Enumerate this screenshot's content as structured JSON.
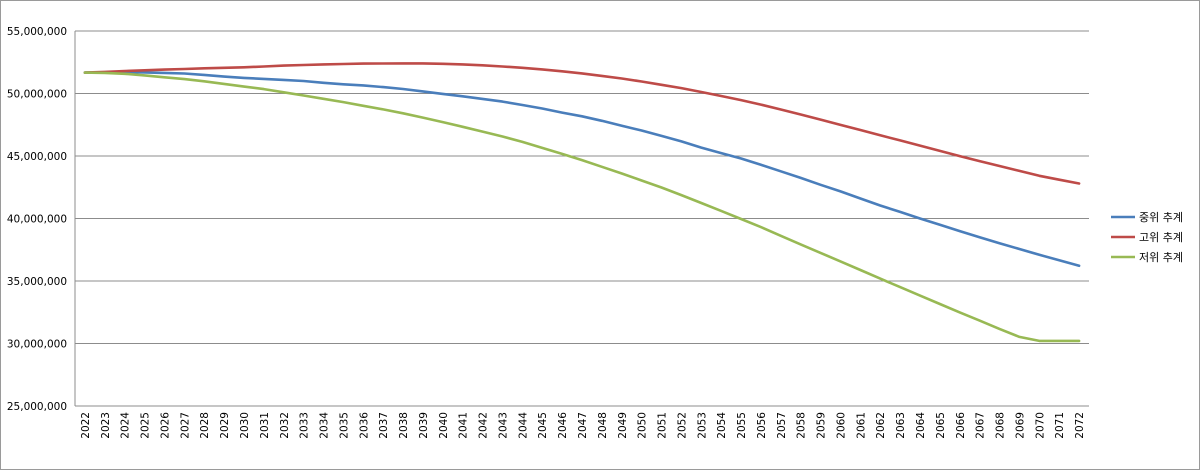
{
  "chart_data": {
    "type": "line",
    "title": "",
    "xlabel": "",
    "ylabel": "",
    "ylim": [
      25000000,
      55000000
    ],
    "yticks": [
      25000000,
      30000000,
      35000000,
      40000000,
      45000000,
      50000000,
      55000000
    ],
    "ytick_labels": [
      "25,000,000",
      "30,000,000",
      "35,000,000",
      "40,000,000",
      "45,000,000",
      "50,000,000",
      "55,000,000"
    ],
    "grid": "horizontal",
    "legend_position": "right",
    "x": [
      2022,
      2023,
      2024,
      2025,
      2026,
      2027,
      2028,
      2029,
      2030,
      2031,
      2032,
      2033,
      2034,
      2035,
      2036,
      2037,
      2038,
      2039,
      2040,
      2041,
      2042,
      2043,
      2044,
      2045,
      2046,
      2047,
      2048,
      2049,
      2050,
      2051,
      2052,
      2053,
      2054,
      2055,
      2056,
      2057,
      2058,
      2059,
      2060,
      2061,
      2062,
      2063,
      2064,
      2065,
      2066,
      2067,
      2068,
      2069,
      2070,
      2071,
      2072
    ],
    "series": [
      {
        "name": "중위 추계",
        "color": "#4a7ebb",
        "values": [
          51670000,
          51690000,
          51710000,
          51690000,
          51650000,
          51600000,
          51490000,
          51350000,
          51250000,
          51170000,
          51090000,
          51000000,
          50860000,
          50740000,
          50650000,
          50510000,
          50360000,
          50170000,
          49970000,
          49780000,
          49570000,
          49350000,
          49080000,
          48800000,
          48470000,
          48180000,
          47820000,
          47420000,
          47040000,
          46610000,
          46170000,
          45670000,
          45230000,
          44800000,
          44300000,
          43780000,
          43250000,
          42700000,
          42170000,
          41600000,
          41040000,
          40530000,
          40000000,
          39500000,
          38990000,
          38500000,
          38020000,
          37560000,
          37100000,
          36660000,
          36220000
        ]
      },
      {
        "name": "고위 추계",
        "color": "#be4b48",
        "values": [
          51670000,
          51730000,
          51800000,
          51860000,
          51910000,
          51960000,
          52020000,
          52060000,
          52100000,
          52160000,
          52230000,
          52280000,
          52330000,
          52360000,
          52390000,
          52400000,
          52410000,
          52410000,
          52380000,
          52330000,
          52260000,
          52160000,
          52060000,
          51930000,
          51780000,
          51610000,
          51410000,
          51200000,
          50960000,
          50700000,
          50430000,
          50120000,
          49800000,
          49470000,
          49110000,
          48720000,
          48320000,
          47910000,
          47490000,
          47080000,
          46660000,
          46250000,
          45830000,
          45410000,
          44990000,
          44590000,
          44200000,
          43810000,
          43420000,
          43100000,
          42800000
        ]
      },
      {
        "name": "저위 추계",
        "color": "#98b954",
        "values": [
          51670000,
          51650000,
          51580000,
          51450000,
          51300000,
          51150000,
          50980000,
          50770000,
          50550000,
          50350000,
          50100000,
          49840000,
          49580000,
          49310000,
          49020000,
          48730000,
          48420000,
          48070000,
          47710000,
          47340000,
          46950000,
          46560000,
          46130000,
          45650000,
          45170000,
          44670000,
          44140000,
          43600000,
          43040000,
          42480000,
          41870000,
          41240000,
          40610000,
          39960000,
          39310000,
          38620000,
          37930000,
          37250000,
          36570000,
          35880000,
          35190000,
          34510000,
          33830000,
          33160000,
          32490000,
          31830000,
          31170000,
          30530000,
          30210000,
          30210000,
          30210000
        ]
      }
    ]
  }
}
